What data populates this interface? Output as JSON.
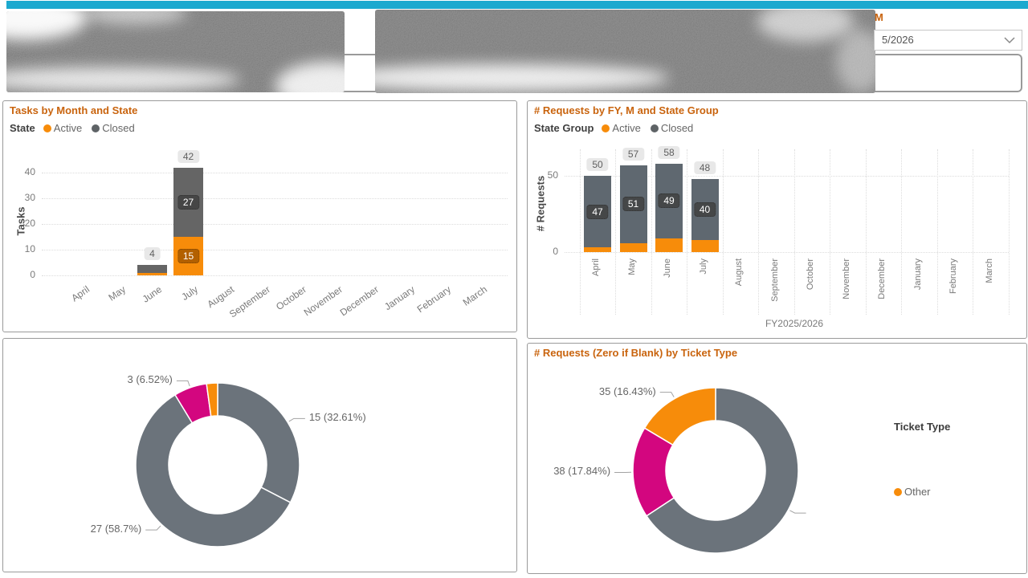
{
  "colors": {
    "accent_cyan": "#1CA9CF",
    "title_orange": "#C9640E",
    "orange": "#F78C0A",
    "gray_bar_left": "#656565",
    "gray_bar_right": "#5F6870",
    "gray_donut": "#6B737B",
    "gray_legend": "#5E6366",
    "magenta": "#D3067F"
  },
  "header": {
    "slicer_label": "M",
    "slicer_value": "5/2026"
  },
  "chart_data": [
    {
      "type": "bar",
      "stacked": true,
      "title": "Tasks by Month and State",
      "legend_title": "State",
      "legend": [
        {
          "label": "Active",
          "color_key": "orange"
        },
        {
          "label": "Closed",
          "color_key": "gray_legend"
        }
      ],
      "ylabel": "Tasks",
      "y_ticks": [
        0,
        10,
        20,
        30,
        40
      ],
      "categories": [
        "April",
        "May",
        "June",
        "July",
        "August",
        "September",
        "October",
        "November",
        "December",
        "January",
        "February",
        "March"
      ],
      "series": [
        {
          "name": "Active",
          "color_key": "orange",
          "values": [
            0,
            0,
            1,
            15,
            0,
            0,
            0,
            0,
            0,
            0,
            0,
            0
          ]
        },
        {
          "name": "Closed",
          "color_key": "gray_bar_left",
          "values": [
            0,
            0,
            3,
            27,
            0,
            0,
            0,
            0,
            0,
            0,
            0,
            0
          ]
        }
      ],
      "totals": [
        null,
        null,
        4,
        42,
        null,
        null,
        null,
        null,
        null,
        null,
        null,
        null
      ]
    },
    {
      "type": "bar",
      "stacked": true,
      "title": "# Requests by FY, M and State Group",
      "legend_title": "State Group",
      "legend": [
        {
          "label": "Active",
          "color_key": "orange"
        },
        {
          "label": "Closed",
          "color_key": "gray_legend"
        }
      ],
      "ylabel": "# Requests",
      "y_ticks": [
        0,
        50
      ],
      "x_group_label": "FY2025/2026",
      "categories": [
        "April",
        "May",
        "June",
        "July",
        "August",
        "September",
        "October",
        "November",
        "December",
        "January",
        "February",
        "March"
      ],
      "series": [
        {
          "name": "Active",
          "color_key": "orange",
          "values": [
            3,
            6,
            9,
            8,
            0,
            0,
            0,
            0,
            0,
            0,
            0,
            0
          ]
        },
        {
          "name": "Closed",
          "color_key": "gray_bar_right",
          "values": [
            47,
            51,
            49,
            40,
            0,
            0,
            0,
            0,
            0,
            0,
            0,
            0
          ]
        }
      ],
      "totals": [
        50,
        57,
        58,
        48,
        null,
        null,
        null,
        null,
        null,
        null,
        null,
        null
      ]
    },
    {
      "type": "donut",
      "title": null,
      "title_redacted": true,
      "slices": [
        {
          "label": "15 (32.61%)",
          "value": 15,
          "pct": 32.61,
          "color_key": "gray_donut"
        },
        {
          "label": "27 (58.7%)",
          "value": 27,
          "pct": 58.7,
          "color_key": "gray_donut"
        },
        {
          "label": "3 (6.52%)",
          "value": 3,
          "pct": 6.52,
          "color_key": "magenta"
        },
        {
          "label": null,
          "value": 1,
          "pct": 2.17,
          "color_key": "orange"
        }
      ],
      "legend_redacted_lines": 4
    },
    {
      "type": "donut",
      "title": "# Requests (Zero if Blank) by Ticket Type",
      "slices": [
        {
          "label": null,
          "label_redacted": true,
          "value": 140,
          "pct": 65.73,
          "color_key": "gray_donut"
        },
        {
          "label": "38 (17.84%)",
          "value": 38,
          "pct": 17.84,
          "color_key": "magenta"
        },
        {
          "label": "35 (16.43%)",
          "value": 35,
          "pct": 16.43,
          "color_key": "orange"
        }
      ],
      "legend_title": "Ticket Type",
      "legend_items": [
        {
          "label": "Other",
          "color_key": "orange"
        }
      ],
      "legend_redacted_lines": 2
    }
  ]
}
